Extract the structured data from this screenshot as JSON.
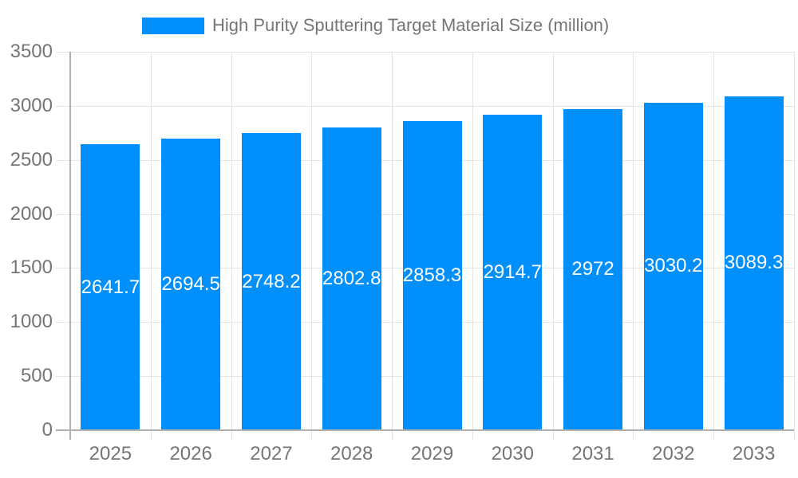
{
  "legend": {
    "label": "High Purity Sputtering Target Material Size (million)"
  },
  "chart_data": {
    "type": "bar",
    "title": "High Purity Sputtering Target Material Size (million)",
    "categories": [
      "2025",
      "2026",
      "2027",
      "2028",
      "2029",
      "2030",
      "2031",
      "2032",
      "2033"
    ],
    "series": [
      {
        "name": "High Purity Sputtering Target Material Size (million)",
        "values": [
          2641.7,
          2694.5,
          2748.2,
          2802.8,
          2858.3,
          2914.7,
          2972,
          3030.2,
          3089.3
        ]
      }
    ],
    "bar_labels": [
      "2641.7",
      "2694.5",
      "2748.2",
      "2802.8",
      "2858.3",
      "2914.7",
      "2972",
      "3030.2",
      "3089.3"
    ],
    "xlabel": "",
    "ylabel": "",
    "ylim": [
      0,
      3500
    ],
    "yticks": [
      0,
      500,
      1000,
      1500,
      2000,
      2500,
      3000,
      3500
    ],
    "grid": true,
    "legend_position": "top",
    "colors": {
      "bar": "#008ffb",
      "grid": "#e4e4e4",
      "axis": "#b0b0b0",
      "tick_text": "#757575",
      "title_text": "#757575",
      "bar_label_text": "#ffffff"
    }
  }
}
